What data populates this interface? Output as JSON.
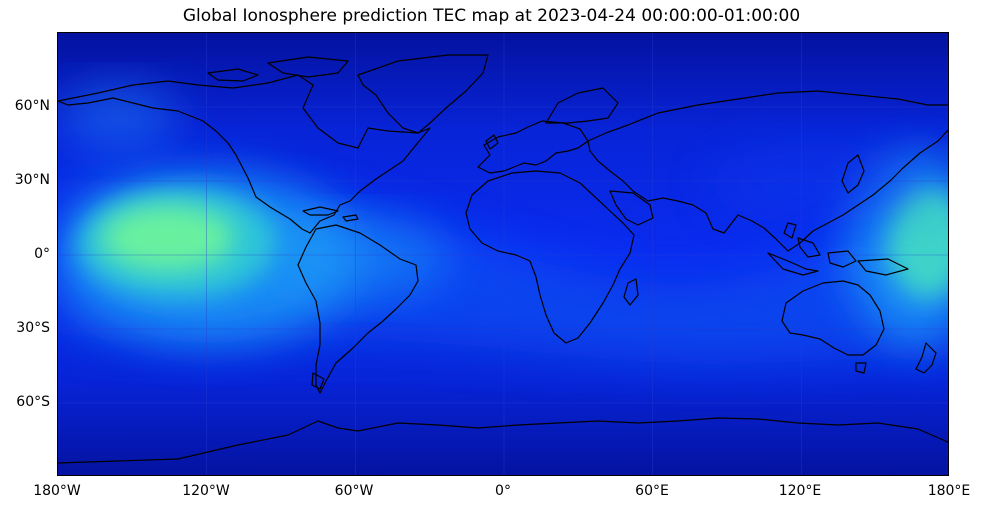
{
  "title": "Global Ionosphere prediction TEC map at 2023-04-24 00:00:00-01:00:00",
  "map": {
    "projection": "equirectangular",
    "lon_range": [
      -180,
      180
    ],
    "lat_range": [
      -90,
      90
    ],
    "colormap": "jet",
    "grid": true,
    "colors": {
      "background": "#0a1ee0",
      "polar_dark": "#0414a8",
      "ridge": "#57f09a",
      "land_outline": "#000000"
    }
  },
  "y_ticks": [
    "60°N",
    "30°N",
    "0°",
    "30°S",
    "60°S"
  ],
  "x_ticks": [
    "180°W",
    "120°W",
    "60°W",
    "0°",
    "60°E",
    "120°E",
    "180°E"
  ]
}
